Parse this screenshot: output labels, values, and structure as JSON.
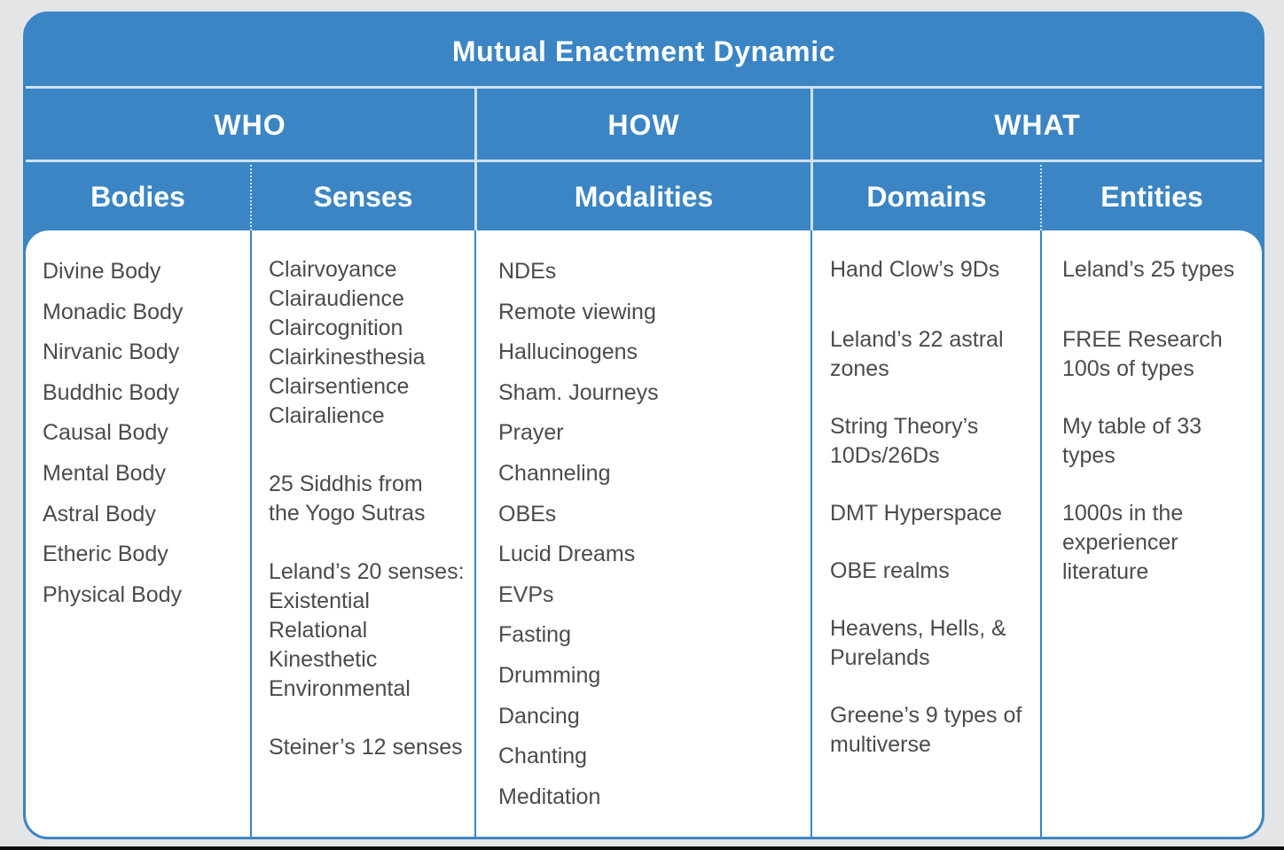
{
  "title": "Mutual Enactment Dynamic",
  "groups": [
    {
      "label": "WHO"
    },
    {
      "label": "HOW"
    },
    {
      "label": "WHAT"
    }
  ],
  "columns": [
    {
      "header": "Bodies",
      "items": [
        "Divine Body",
        "Monadic Body",
        "Nirvanic Body",
        "Buddhic Body",
        "Causal Body",
        "Mental Body",
        "Astral Body",
        "Etheric Body",
        "Physical Body"
      ]
    },
    {
      "header": "Senses",
      "items": [
        "Clairvoyance",
        "Clairaudience",
        "Claircognition",
        "Clairkinesthesia",
        "Clairsentience",
        "Clairalience",
        "25 Siddhis from",
        "the Yogo Sutras",
        "Leland’s 20 senses:",
        "Existential",
        "Relational",
        "Kinesthetic",
        "Environmental",
        "Steiner’s 12 senses"
      ]
    },
    {
      "header": "Modalities",
      "items": [
        "NDEs",
        "Remote viewing",
        "Hallucinogens",
        "Sham. Journeys",
        "Prayer",
        "Channeling",
        "OBEs",
        "Lucid Dreams",
        "EVPs",
        "Fasting",
        "Drumming",
        "Dancing",
        "Chanting",
        "Meditation"
      ]
    },
    {
      "header": "Domains",
      "items": [
        "Hand Clow’s 9Ds",
        "Leland’s 22 astral",
        "zones",
        "String Theory’s",
        "10Ds/26Ds",
        "DMT Hyperspace",
        "OBE realms",
        "Heavens, Hells, &",
        "Purelands",
        "Greene’s 9 types of",
        "multiverse"
      ]
    },
    {
      "header": "Entities",
      "items": [
        "Leland’s 25 types",
        "FREE Research",
        "100s of types",
        "My table of 33",
        "types",
        "1000s in the",
        "experiencer",
        "literature"
      ]
    }
  ]
}
